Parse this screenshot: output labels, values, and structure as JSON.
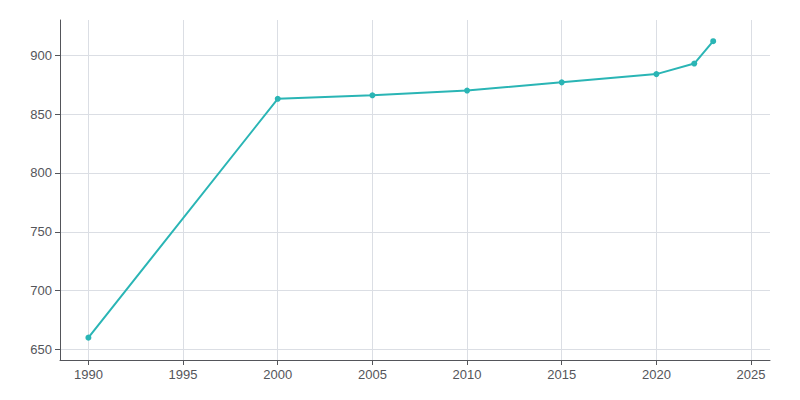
{
  "chart_data": {
    "type": "line",
    "x": [
      1990,
      2000,
      2005,
      2010,
      2015,
      2020,
      2022,
      2023
    ],
    "values": [
      660,
      863,
      866,
      870,
      877,
      884,
      893,
      912
    ],
    "color": "#2ab5b5",
    "marker": "circle",
    "xlim": [
      1988.5,
      2026
    ],
    "ylim": [
      641,
      930
    ],
    "xticks": [
      1990,
      1995,
      2000,
      2005,
      2010,
      2015,
      2020,
      2025
    ],
    "yticks": [
      650,
      700,
      750,
      800,
      850,
      900
    ],
    "grid": true
  }
}
